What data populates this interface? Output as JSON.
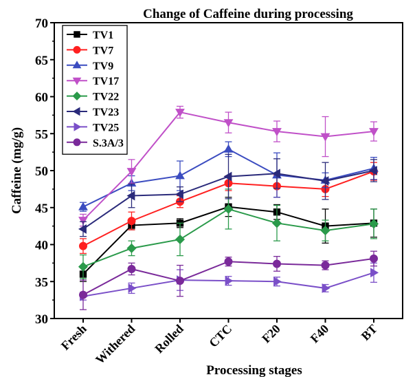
{
  "chart_data": {
    "type": "line",
    "title": "Change of Caffeine during processing",
    "xlabel": "Processing stages",
    "ylabel": "Caffeine (mg/g)",
    "categories": [
      "Fresh",
      "Withered",
      "Rolled",
      "CTC",
      "F20",
      "F40",
      "BT"
    ],
    "ylim": [
      30,
      70
    ],
    "yticks": [
      30,
      35,
      40,
      45,
      50,
      55,
      60,
      65,
      70
    ],
    "ytick_labels": [
      "30",
      "35",
      "40",
      "45",
      "50",
      "55",
      "60",
      "65",
      "70"
    ],
    "grid": false,
    "legend_position": "top-left",
    "series": [
      {
        "name": "TV1",
        "color": "#000000",
        "marker": "square",
        "values": [
          36.0,
          42.6,
          42.9,
          45.1,
          44.4,
          42.5,
          42.9
        ],
        "errors": [
          1.0,
          0.6,
          0.6,
          1.3,
          1.0,
          2.3,
          1.9
        ]
      },
      {
        "name": "TV7",
        "color": "#ff2020",
        "marker": "circle",
        "values": [
          39.8,
          43.2,
          45.8,
          48.3,
          47.9,
          47.5,
          49.9
        ],
        "errors": [
          1.0,
          1.2,
          0.8,
          1.0,
          1.5,
          1.0,
          1.2
        ]
      },
      {
        "name": "TV9",
        "color": "#3b4cc0",
        "marker": "triangle-up",
        "values": [
          45.1,
          48.3,
          49.3,
          52.9,
          49.4,
          48.7,
          50.3
        ],
        "errors": [
          0.6,
          1.0,
          2.0,
          1.0,
          3.0,
          1.0,
          1.5
        ]
      },
      {
        "name": "TV17",
        "color": "#c050c8",
        "marker": "triangle-down",
        "values": [
          43.3,
          49.9,
          57.9,
          56.5,
          55.3,
          54.6,
          55.3
        ],
        "errors": [
          0.8,
          1.6,
          0.8,
          1.4,
          1.4,
          2.7,
          1.3
        ]
      },
      {
        "name": "TV22",
        "color": "#2a9a4a",
        "marker": "diamond",
        "values": [
          37.0,
          39.5,
          40.7,
          44.8,
          42.9,
          41.9,
          42.8
        ],
        "errors": [
          1.6,
          1.0,
          2.2,
          2.7,
          2.4,
          1.4,
          2.0
        ]
      },
      {
        "name": "TV23",
        "color": "#2a2a7a",
        "marker": "triangle-left",
        "values": [
          42.1,
          46.6,
          46.8,
          49.2,
          49.6,
          48.6,
          50.0
        ],
        "errors": [
          1.0,
          1.6,
          1.0,
          3.0,
          2.0,
          2.5,
          1.5
        ]
      },
      {
        "name": "TV25",
        "color": "#7a4fc8",
        "marker": "triangle-right",
        "values": [
          33.0,
          34.1,
          35.2,
          35.1,
          35.0,
          34.1,
          36.2
        ],
        "errors": [
          0.5,
          0.7,
          1.4,
          0.6,
          0.6,
          0.5,
          1.3
        ]
      },
      {
        "name": "S.3A/3",
        "color": "#7a2a9a",
        "marker": "circle",
        "values": [
          33.2,
          36.7,
          35.1,
          37.7,
          37.4,
          37.2,
          38.1
        ],
        "errors": [
          2.0,
          0.8,
          2.1,
          0.6,
          1.0,
          0.6,
          1.0
        ]
      }
    ]
  }
}
